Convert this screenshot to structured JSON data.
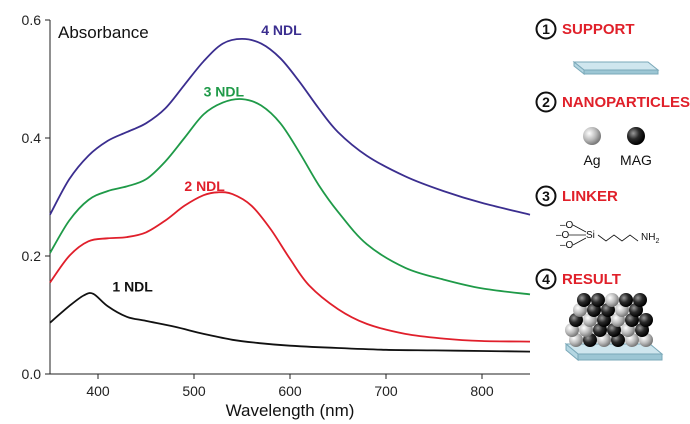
{
  "chart_data": {
    "type": "line",
    "ylabel": "Absorbance",
    "xlabel": "Wavelength (nm)",
    "xlim": [
      350,
      850
    ],
    "ylim": [
      0,
      0.6
    ],
    "x_ticks": [
      400,
      500,
      600,
      700,
      800
    ],
    "y_ticks": [
      0.0,
      0.2,
      0.4,
      0.6
    ],
    "x_tick_labels": [
      "400",
      "500",
      "600",
      "700",
      "800"
    ],
    "y_tick_labels": [
      "0.0",
      "0.2",
      "0.4",
      "0.6"
    ],
    "grid": false,
    "series": [
      {
        "name": "4 NDL",
        "color": "#3b2e8f",
        "x": [
          350,
          370,
          390,
          410,
          430,
          450,
          470,
          490,
          510,
          530,
          550,
          570,
          590,
          610,
          630,
          650,
          680,
          720,
          760,
          800,
          850
        ],
        "y": [
          0.27,
          0.33,
          0.37,
          0.395,
          0.41,
          0.425,
          0.45,
          0.49,
          0.53,
          0.56,
          0.568,
          0.56,
          0.535,
          0.495,
          0.45,
          0.41,
          0.37,
          0.335,
          0.31,
          0.29,
          0.27
        ]
      },
      {
        "name": "3 NDL",
        "color": "#1f9a48",
        "x": [
          350,
          370,
          390,
          410,
          430,
          450,
          470,
          490,
          510,
          530,
          550,
          570,
          590,
          610,
          630,
          650,
          680,
          720,
          760,
          800,
          850
        ],
        "y": [
          0.205,
          0.26,
          0.295,
          0.31,
          0.318,
          0.33,
          0.36,
          0.4,
          0.44,
          0.46,
          0.466,
          0.455,
          0.425,
          0.375,
          0.32,
          0.275,
          0.22,
          0.18,
          0.16,
          0.145,
          0.135
        ]
      },
      {
        "name": "2 NDL",
        "color": "#e01f2b",
        "x": [
          350,
          370,
          390,
          410,
          430,
          450,
          470,
          490,
          510,
          525,
          540,
          560,
          580,
          600,
          620,
          650,
          680,
          720,
          760,
          800,
          850
        ],
        "y": [
          0.155,
          0.2,
          0.225,
          0.23,
          0.232,
          0.24,
          0.26,
          0.285,
          0.303,
          0.308,
          0.305,
          0.285,
          0.245,
          0.195,
          0.15,
          0.11,
          0.085,
          0.068,
          0.06,
          0.056,
          0.055
        ]
      },
      {
        "name": "1 NDL",
        "color": "#111111",
        "x": [
          350,
          370,
          385,
          395,
          410,
          430,
          450,
          480,
          510,
          540,
          570,
          600,
          650,
          700,
          750,
          800,
          850
        ],
        "y": [
          0.087,
          0.115,
          0.133,
          0.136,
          0.115,
          0.097,
          0.09,
          0.08,
          0.068,
          0.058,
          0.052,
          0.048,
          0.044,
          0.041,
          0.04,
          0.039,
          0.038
        ]
      }
    ]
  },
  "panel": {
    "steps": [
      {
        "number": "1",
        "title": "SUPPORT"
      },
      {
        "number": "2",
        "title": "NANOPARTICLES"
      },
      {
        "number": "3",
        "title": "LINKER"
      },
      {
        "number": "4",
        "title": "RESULT"
      }
    ],
    "particle_labels": [
      "Ag",
      "MAG"
    ],
    "linker": {
      "atom_si": "Si",
      "group_nh2": "NH",
      "nh2_sub": "2",
      "methoxy": "–O"
    }
  }
}
